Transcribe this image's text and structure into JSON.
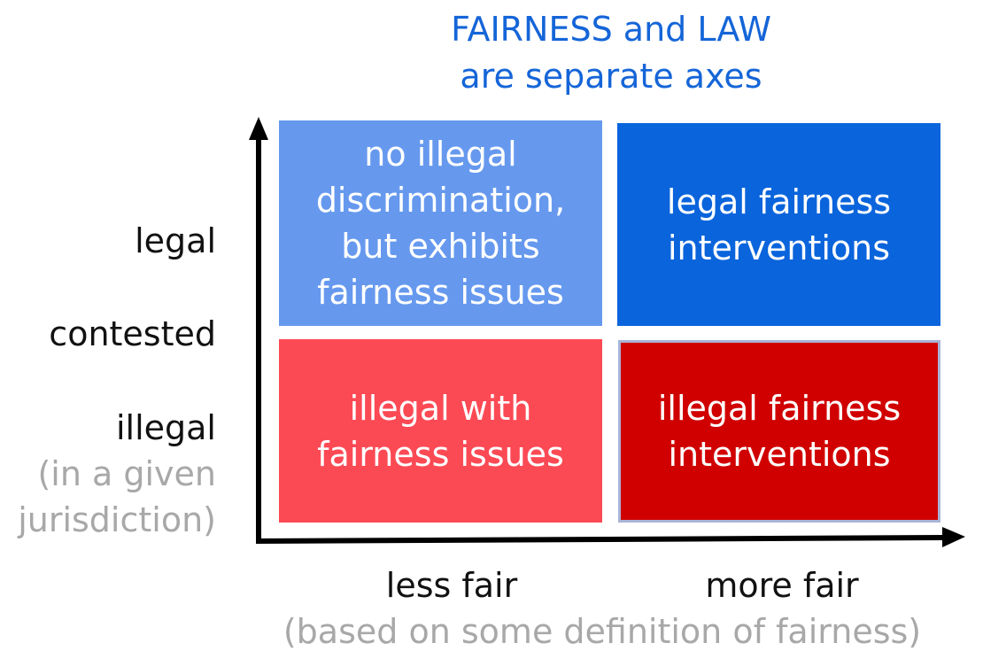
{
  "title": {
    "line1": "FAIRNESS and LAW",
    "line2": "are separate axes"
  },
  "y_axis": {
    "legal": "legal",
    "contested": "contested",
    "illegal": "illegal",
    "note_line1": "(in a given",
    "note_line2": "jurisdiction)"
  },
  "x_axis": {
    "less_fair": "less fair",
    "more_fair": "more fair",
    "note": "(based on some definition of fairness)"
  },
  "quadrants": {
    "top_left": {
      "lines": [
        "no illegal",
        "discrimination,",
        "but exhibits",
        "fairness issues"
      ],
      "color": "#6699ee"
    },
    "top_right": {
      "lines": [
        "legal fairness",
        "interventions"
      ],
      "color": "#0a64dc"
    },
    "bottom_left": {
      "lines": [
        "illegal with",
        "fairness issues"
      ],
      "color": "#fc4a55"
    },
    "bottom_right": {
      "lines": [
        "illegal fairness",
        "interventions"
      ],
      "color": "#d10000"
    }
  }
}
